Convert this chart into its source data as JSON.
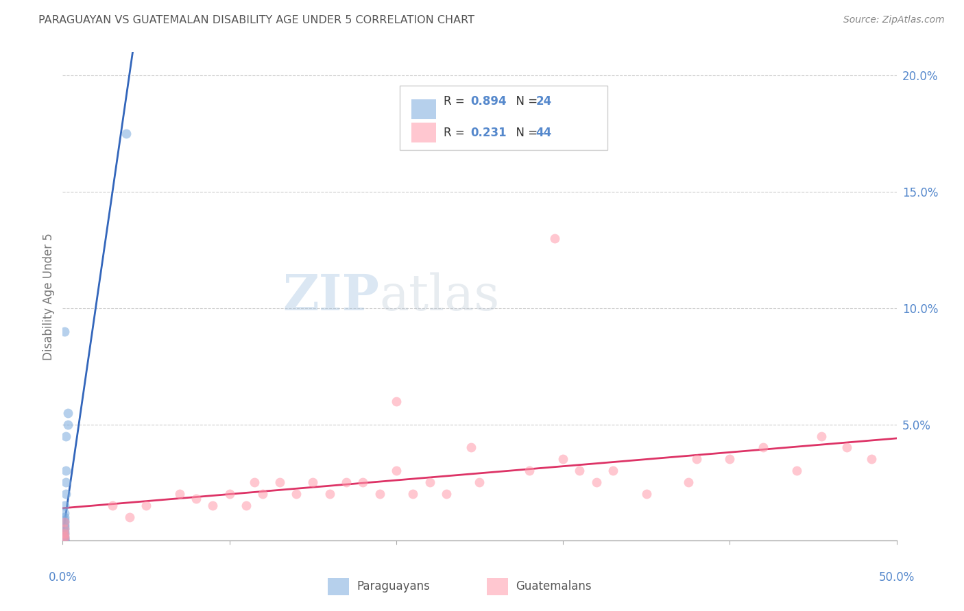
{
  "title": "PARAGUAYAN VS GUATEMALAN DISABILITY AGE UNDER 5 CORRELATION CHART",
  "source": "Source: ZipAtlas.com",
  "ylabel": "Disability Age Under 5",
  "xlim": [
    0.0,
    0.5
  ],
  "ylim": [
    0.0,
    0.21
  ],
  "yticks": [
    0.0,
    0.05,
    0.1,
    0.15,
    0.2
  ],
  "ytick_labels": [
    "",
    "5.0%",
    "10.0%",
    "15.0%",
    "20.0%"
  ],
  "xticks": [
    0.0,
    0.1,
    0.2,
    0.3,
    0.4,
    0.5
  ],
  "background_color": "#ffffff",
  "grid_color": "#cccccc",
  "blue_scatter_color": "#7aaadd",
  "pink_scatter_color": "#ff99aa",
  "blue_line_color": "#3366bb",
  "pink_line_color": "#dd3366",
  "text_color": "#555555",
  "axis_tick_color": "#5588cc",
  "legend_text_color": "#333333",
  "R_par": "0.894",
  "N_par": "24",
  "R_guat": "0.231",
  "N_guat": "44",
  "par_line_x": [
    0.0,
    0.042
  ],
  "par_line_y": [
    0.002,
    0.21
  ],
  "guat_line_x": [
    0.0,
    0.5
  ],
  "guat_line_y": [
    0.014,
    0.044
  ],
  "paraguayan_x": [
    0.001,
    0.001,
    0.001,
    0.001,
    0.001,
    0.001,
    0.001,
    0.001,
    0.001,
    0.001,
    0.001,
    0.001,
    0.001,
    0.001,
    0.001,
    0.001,
    0.002,
    0.002,
    0.002,
    0.002,
    0.003,
    0.003,
    0.038,
    0.001
  ],
  "paraguayan_y": [
    0.0,
    0.0,
    0.0,
    0.001,
    0.001,
    0.002,
    0.003,
    0.004,
    0.005,
    0.006,
    0.007,
    0.008,
    0.009,
    0.01,
    0.012,
    0.015,
    0.02,
    0.025,
    0.03,
    0.045,
    0.05,
    0.055,
    0.175,
    0.09
  ],
  "guatemalan_x": [
    0.001,
    0.001,
    0.001,
    0.001,
    0.001,
    0.03,
    0.04,
    0.05,
    0.07,
    0.08,
    0.09,
    0.1,
    0.11,
    0.115,
    0.12,
    0.13,
    0.14,
    0.15,
    0.16,
    0.17,
    0.18,
    0.19,
    0.2,
    0.21,
    0.22,
    0.23,
    0.245,
    0.25,
    0.28,
    0.3,
    0.31,
    0.32,
    0.33,
    0.35,
    0.375,
    0.38,
    0.4,
    0.42,
    0.44,
    0.455,
    0.47,
    0.485,
    0.295,
    0.2
  ],
  "guatemalan_y": [
    0.001,
    0.002,
    0.003,
    0.005,
    0.008,
    0.015,
    0.01,
    0.015,
    0.02,
    0.018,
    0.015,
    0.02,
    0.015,
    0.025,
    0.02,
    0.025,
    0.02,
    0.025,
    0.02,
    0.025,
    0.025,
    0.02,
    0.03,
    0.02,
    0.025,
    0.02,
    0.04,
    0.025,
    0.03,
    0.035,
    0.03,
    0.025,
    0.03,
    0.02,
    0.025,
    0.035,
    0.035,
    0.04,
    0.03,
    0.045,
    0.04,
    0.035,
    0.13,
    0.06
  ]
}
